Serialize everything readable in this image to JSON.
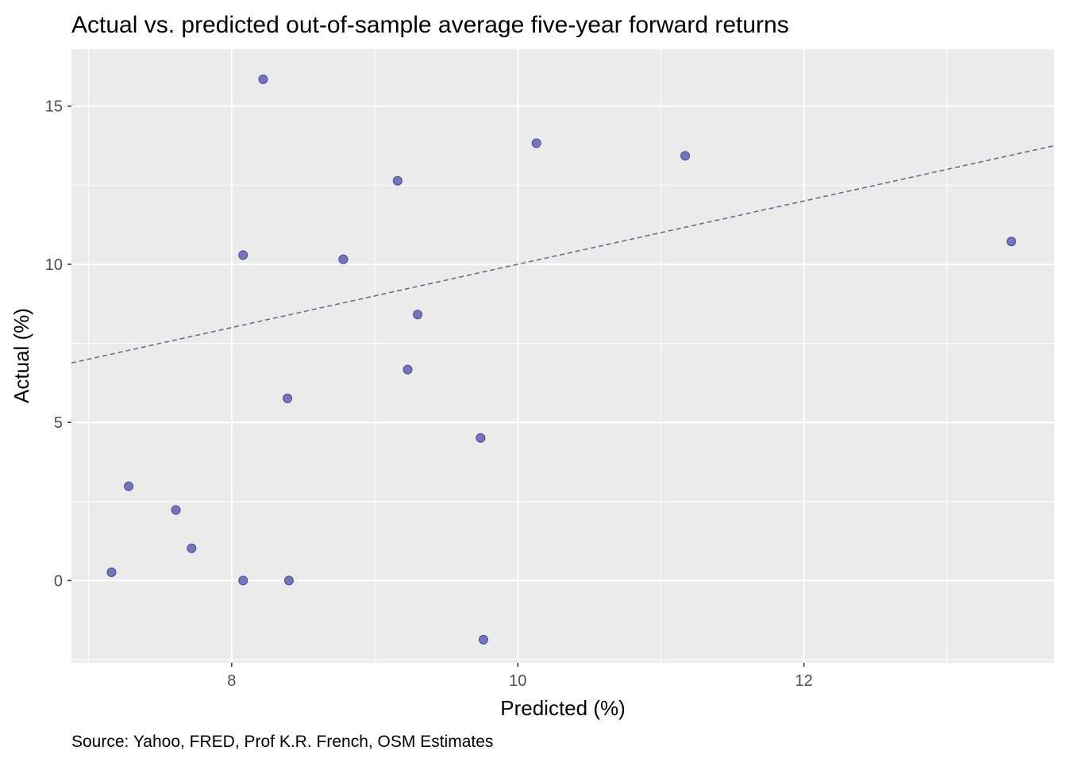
{
  "chart_data": {
    "type": "scatter",
    "title": "Actual vs. predicted out-of-sample average five-year forward returns",
    "xlabel": "Predicted (%)",
    "ylabel": "Actual (%)",
    "caption": "Source: Yahoo, FRED, Prof K.R. French, OSM Estimates",
    "xlim": [
      6.88,
      13.75
    ],
    "ylim": [
      -2.6,
      16.8
    ],
    "x_ticks": [
      8,
      10,
      12
    ],
    "x_tick_labels": [
      "8",
      "10",
      "12"
    ],
    "x_minor_ticks": [
      7,
      9,
      11,
      13
    ],
    "y_ticks": [
      0,
      5,
      10,
      15
    ],
    "y_tick_labels": [
      "0",
      "5",
      "10",
      "15"
    ],
    "y_minor_ticks": [
      -2.5,
      2.5,
      7.5,
      12.5
    ],
    "grid": true,
    "reference_line": {
      "slope": 1,
      "intercept": 0,
      "style": "dashed",
      "color": "#6b6b8a"
    },
    "point_color": "#7474c1",
    "point_border": "#4b4b8f",
    "panel_background": "#ebebeb",
    "points": [
      {
        "x": 8.22,
        "y": 15.85
      },
      {
        "x": 10.13,
        "y": 13.83
      },
      {
        "x": 11.17,
        "y": 13.43
      },
      {
        "x": 9.16,
        "y": 12.64
      },
      {
        "x": 13.45,
        "y": 10.72
      },
      {
        "x": 8.08,
        "y": 10.29
      },
      {
        "x": 8.78,
        "y": 10.16
      },
      {
        "x": 9.3,
        "y": 8.41
      },
      {
        "x": 9.23,
        "y": 6.67
      },
      {
        "x": 8.39,
        "y": 5.76
      },
      {
        "x": 9.74,
        "y": 4.51
      },
      {
        "x": 7.28,
        "y": 2.98
      },
      {
        "x": 7.61,
        "y": 2.23
      },
      {
        "x": 7.72,
        "y": 1.02
      },
      {
        "x": 7.16,
        "y": 0.26
      },
      {
        "x": 8.08,
        "y": 0.0
      },
      {
        "x": 8.4,
        "y": 0.0
      },
      {
        "x": 9.76,
        "y": -1.87
      }
    ]
  }
}
